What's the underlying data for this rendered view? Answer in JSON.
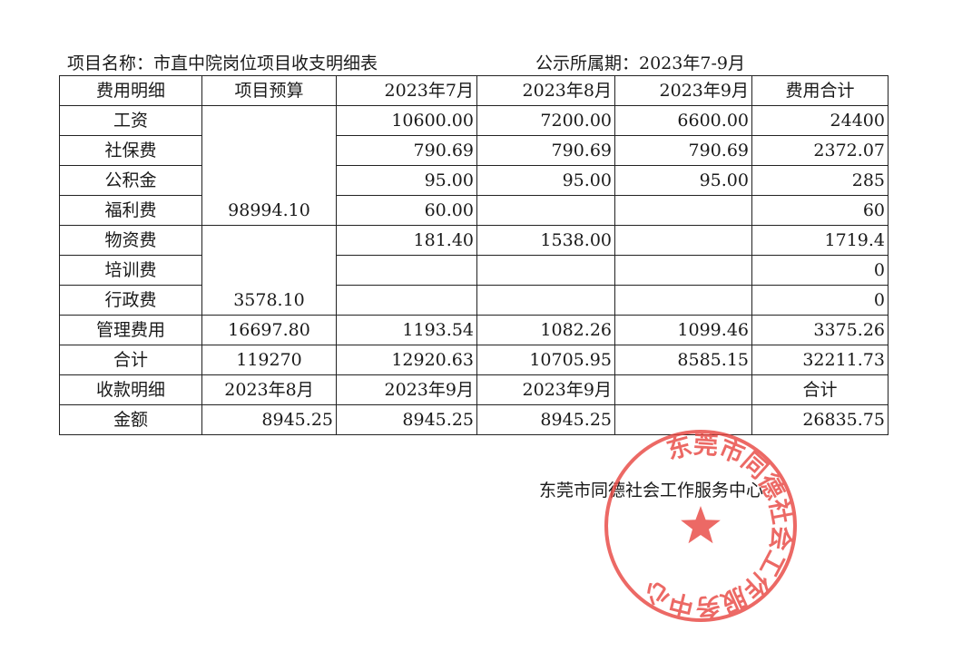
{
  "header": {
    "project_name": "项目名称：市直中院岗位项目收支明细表",
    "period": "公示所属期：2023年7-9月"
  },
  "table": {
    "columns": [
      "费用明细",
      "项目预算",
      "2023年7月",
      "2023年8月",
      "2023年9月",
      "费用合计"
    ],
    "budget_groups": [
      "98994.10",
      "3578.10"
    ],
    "rows": [
      {
        "item": "工资",
        "jul": "10600.00",
        "aug": "7200.00",
        "sep": "6600.00",
        "total": "24400"
      },
      {
        "item": "社保费",
        "jul": "790.69",
        "aug": "790.69",
        "sep": "790.69",
        "total": "2372.07"
      },
      {
        "item": "公积金",
        "jul": "95.00",
        "aug": "95.00",
        "sep": "95.00",
        "total": "285"
      },
      {
        "item": "福利费",
        "jul": "60.00",
        "aug": "",
        "sep": "",
        "total": "60"
      },
      {
        "item": "物资费",
        "jul": "181.40",
        "aug": "1538.00",
        "sep": "",
        "total": "1719.4"
      },
      {
        "item": "培训费",
        "jul": "",
        "aug": "",
        "sep": "",
        "total": "0"
      },
      {
        "item": "行政费",
        "jul": "",
        "aug": "",
        "sep": "",
        "total": "0"
      },
      {
        "item": "管理费用",
        "budget": "16697.80",
        "jul": "1193.54",
        "aug": "1082.26",
        "sep": "1099.46",
        "total": "3375.26"
      },
      {
        "item": "合计",
        "budget": "119270",
        "jul": "12920.63",
        "aug": "10705.95",
        "sep": "8585.15",
        "total": "32211.73"
      }
    ],
    "receipts_header": [
      "收款明细",
      "2023年8月",
      "2023年9月",
      "2023年9月",
      "",
      "合计"
    ],
    "receipts_row": [
      "金额",
      "8945.25",
      "8945.25",
      "8945.25",
      "",
      "26835.75"
    ]
  },
  "signer": "东莞市同德社会工作服务中心",
  "stamp": {
    "text": "东莞市同德社会工作服务中心",
    "color": "#e8443f"
  }
}
